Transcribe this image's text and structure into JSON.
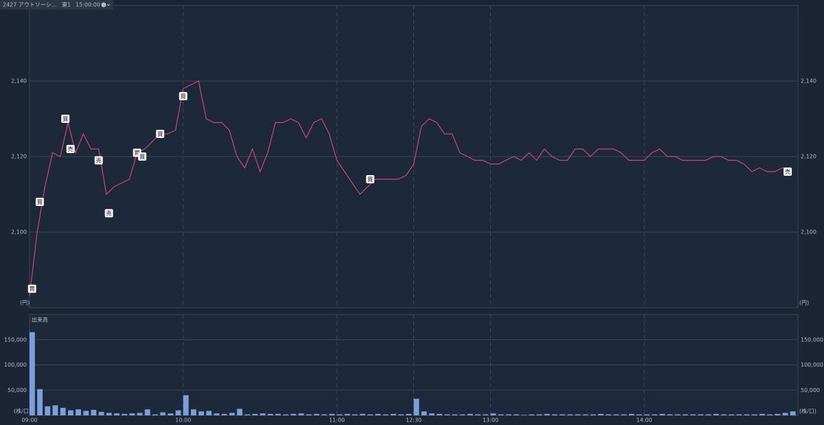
{
  "chart_data": [
    {
      "type": "line",
      "title": "2427 アウトソーシ…",
      "market": "東1",
      "time": "15:00:00",
      "y_unit": "(円)",
      "color": "#d0457f",
      "xlim": [
        0,
        300
      ],
      "ylim": [
        2080,
        2160
      ],
      "yticks": [
        {
          "value": 2100,
          "label": "2,100"
        },
        {
          "value": 2120,
          "label": "2,120"
        },
        {
          "value": 2140,
          "label": "2,140"
        }
      ],
      "grid": true,
      "x": [
        0,
        3,
        6,
        9,
        12,
        15,
        18,
        21,
        24,
        27,
        30,
        33,
        36,
        39,
        42,
        45,
        48,
        51,
        54,
        57,
        60,
        63,
        66,
        69,
        72,
        75,
        78,
        81,
        84,
        87,
        90,
        93,
        96,
        99,
        102,
        105,
        108,
        111,
        114,
        117,
        120,
        123,
        126,
        129,
        132,
        135,
        138,
        141,
        144,
        147,
        150,
        153,
        156,
        159,
        162,
        165,
        168,
        171,
        174,
        177,
        180,
        183,
        186,
        189,
        192,
        195,
        198,
        201,
        204,
        207,
        210,
        213,
        216,
        219,
        222,
        225,
        228,
        231,
        234,
        237,
        240,
        243,
        246,
        249,
        252,
        255,
        258,
        261,
        264,
        267,
        270,
        273,
        276,
        279,
        282,
        285,
        288,
        291,
        294,
        297
      ],
      "values": [
        2083,
        2100,
        2112,
        2121,
        2120,
        2129,
        2121,
        2126,
        2122,
        2122,
        2110,
        2112,
        2113,
        2114,
        2121,
        2122,
        2124,
        2126,
        2126,
        2127,
        2138,
        2139,
        2140,
        2130,
        2129,
        2129,
        2127,
        2120,
        2117,
        2122,
        2116,
        2121,
        2129,
        2129,
        2130,
        2129,
        2125,
        2129,
        2130,
        2126,
        2119,
        2116,
        2113,
        2110,
        2112,
        2114,
        2114,
        2114,
        2114,
        2115,
        2118,
        2128,
        2130,
        2129,
        2126,
        2126,
        2121,
        2120,
        2119,
        2119,
        2118,
        2118,
        2119,
        2120,
        2119,
        2121,
        2119,
        2122,
        2120,
        2119,
        2119,
        2122,
        2122,
        2120,
        2122,
        2122,
        2122,
        2121,
        2119,
        2119,
        2119,
        2121,
        2122,
        2120,
        2120,
        2119,
        2119,
        2119,
        2119,
        2120,
        2120,
        2119,
        2119,
        2118,
        2116,
        2117,
        2116,
        2116,
        2117,
        2117
      ],
      "annotations": [
        {
          "label": "買",
          "x": 1,
          "y": 2085
        },
        {
          "label": "買",
          "x": 4,
          "y": 2108
        },
        {
          "label": "買",
          "x": 14,
          "y": 2130
        },
        {
          "label": "売",
          "x": 16,
          "y": 2122
        },
        {
          "label": "売",
          "x": 27,
          "y": 2119
        },
        {
          "label": "売",
          "x": 31,
          "y": 2105
        },
        {
          "label": "買",
          "x": 42,
          "y": 2121
        },
        {
          "label": "買",
          "x": 44,
          "y": 2120
        },
        {
          "label": "買",
          "x": 51,
          "y": 2126
        },
        {
          "label": "買",
          "x": 60,
          "y": 2136
        },
        {
          "label": "買",
          "x": 133,
          "y": 2114
        },
        {
          "label": "売",
          "x": 296,
          "y": 2116
        }
      ]
    },
    {
      "type": "bar",
      "title": "出来高",
      "y_unit": "(株/口)",
      "color": "#7b9fd6",
      "xlim": [
        0,
        300
      ],
      "ylim": [
        0,
        200000
      ],
      "yticks": [
        {
          "value": 50000,
          "label": "50,000"
        },
        {
          "value": 100000,
          "label": "100,000"
        },
        {
          "value": 150000,
          "label": "150,000"
        }
      ],
      "grid": true,
      "xticks": [
        {
          "value": 0,
          "label": "09:00"
        },
        {
          "value": 60,
          "label": "10:00"
        },
        {
          "value": 120,
          "label": "11:00"
        },
        {
          "value": 150,
          "label": "12:30"
        },
        {
          "value": 180,
          "label": "13:00"
        },
        {
          "value": 240,
          "label": "14:00"
        }
      ],
      "x": [
        0,
        3,
        6,
        9,
        12,
        15,
        18,
        21,
        24,
        27,
        30,
        33,
        36,
        39,
        42,
        45,
        48,
        51,
        54,
        57,
        60,
        63,
        66,
        69,
        72,
        75,
        78,
        81,
        84,
        87,
        90,
        93,
        96,
        99,
        102,
        105,
        108,
        111,
        114,
        117,
        120,
        123,
        126,
        129,
        132,
        135,
        138,
        141,
        144,
        147,
        150,
        153,
        156,
        159,
        162,
        165,
        168,
        171,
        174,
        177,
        180,
        183,
        186,
        189,
        192,
        195,
        198,
        201,
        204,
        207,
        210,
        213,
        216,
        219,
        222,
        225,
        228,
        231,
        234,
        237,
        240,
        243,
        246,
        249,
        252,
        255,
        258,
        261,
        264,
        267,
        270,
        273,
        276,
        279,
        282,
        285,
        288,
        291,
        294,
        297
      ],
      "values": [
        165000,
        52000,
        18000,
        20000,
        15000,
        10000,
        12000,
        9000,
        11000,
        7000,
        5000,
        4000,
        3000,
        4000,
        5000,
        12000,
        2000,
        6000,
        4000,
        10000,
        40000,
        12000,
        8000,
        9000,
        4000,
        3000,
        5000,
        13000,
        2000,
        3000,
        4000,
        3000,
        3000,
        2000,
        3000,
        4000,
        2000,
        3000,
        2000,
        3000,
        2000,
        3000,
        2000,
        3000,
        2000,
        3000,
        2000,
        3000,
        2000,
        3000,
        33000,
        8000,
        4000,
        3000,
        2000,
        2000,
        2000,
        3000,
        2000,
        2000,
        4000,
        2000,
        2000,
        2000,
        1000,
        2000,
        2000,
        3000,
        2000,
        2000,
        2000,
        2000,
        2000,
        2000,
        3000,
        2000,
        2000,
        2000,
        3000,
        2000,
        2000,
        2000,
        3000,
        2000,
        2000,
        2000,
        2000,
        2000,
        2000,
        3000,
        2000,
        2000,
        2000,
        2000,
        2000,
        3000,
        2000,
        3000,
        5000,
        8000
      ]
    }
  ]
}
